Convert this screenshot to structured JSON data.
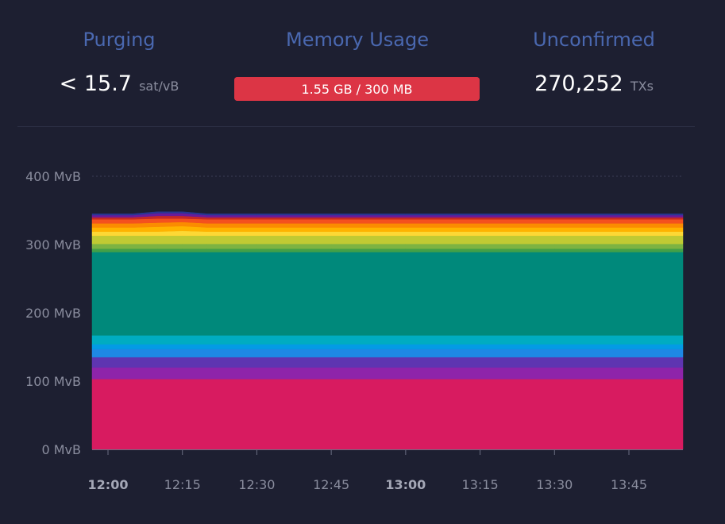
{
  "stats": {
    "purging": {
      "title": "Purging",
      "value": "< 15.7",
      "unit": "sat/vB"
    },
    "memory": {
      "title": "Memory Usage",
      "text": "1.55 GB / 300 MB",
      "fill_fraction": 1.0
    },
    "unconfirmed": {
      "title": "Unconfirmed",
      "value": "270,252",
      "unit": "TXs"
    }
  },
  "colors": {
    "title": "#4a68b0",
    "memory_bar": "#dc3545",
    "background": "#1d1f31"
  },
  "chart_data": {
    "type": "area",
    "stacked": true,
    "title": "",
    "xlabel": "",
    "ylabel": "",
    "y_unit": "MvB",
    "ylim": [
      0,
      400
    ],
    "y_ticks": [
      {
        "value": 0,
        "label": "0 MvB"
      },
      {
        "value": 100,
        "label": "100 MvB"
      },
      {
        "value": 200,
        "label": "200 MvB"
      },
      {
        "value": 300,
        "label": "300 MvB"
      },
      {
        "value": 400,
        "label": "400 MvB"
      }
    ],
    "x_ticks": [
      {
        "value": "12:00",
        "label": "12:00",
        "bold": true
      },
      {
        "value": "12:15",
        "label": "12:15",
        "bold": false
      },
      {
        "value": "12:30",
        "label": "12:30",
        "bold": false
      },
      {
        "value": "12:45",
        "label": "12:45",
        "bold": false
      },
      {
        "value": "13:00",
        "label": "13:00",
        "bold": true
      },
      {
        "value": "13:15",
        "label": "13:15",
        "bold": false
      },
      {
        "value": "13:30",
        "label": "13:30",
        "bold": false
      },
      {
        "value": "13:45",
        "label": "13:45",
        "bold": false
      }
    ],
    "x": [
      "11:58",
      "12:05",
      "12:10",
      "12:15",
      "12:20",
      "12:30",
      "12:45",
      "13:00",
      "13:15",
      "13:30",
      "13:45",
      "13:55"
    ],
    "series": [
      {
        "color": "#d81b60",
        "values": [
          103,
          103,
          103,
          103,
          103,
          103,
          103,
          103,
          103,
          103,
          103,
          103
        ]
      },
      {
        "color": "#8e24aa",
        "values": [
          17,
          17,
          17,
          17,
          17,
          17,
          17,
          17,
          17,
          17,
          17,
          17
        ]
      },
      {
        "color": "#5e35b1",
        "values": [
          15,
          15,
          15,
          15,
          15,
          15,
          15,
          15,
          15,
          15,
          15,
          15
        ]
      },
      {
        "color": "#1e88e5",
        "values": [
          12,
          12,
          12,
          12,
          12,
          12,
          12,
          12,
          12,
          12,
          12,
          12
        ]
      },
      {
        "color": "#039be5",
        "values": [
          7,
          7,
          7,
          7,
          7,
          7,
          7,
          7,
          7,
          7,
          7,
          7
        ]
      },
      {
        "color": "#00acc1",
        "values": [
          13,
          13,
          13,
          13,
          13,
          13,
          13,
          13,
          13,
          13,
          13,
          13
        ]
      },
      {
        "color": "#00897b",
        "values": [
          122,
          122,
          122,
          122,
          122,
          122,
          122,
          122,
          122,
          122,
          122,
          122
        ]
      },
      {
        "color": "#43a047",
        "values": [
          5,
          5,
          5,
          5,
          5,
          5,
          5,
          5,
          5,
          5,
          5,
          5
        ]
      },
      {
        "color": "#7cb342",
        "values": [
          7,
          7,
          7,
          7,
          7,
          7,
          7,
          7,
          7,
          7,
          7,
          7
        ]
      },
      {
        "color": "#c0ca33",
        "values": [
          12,
          12,
          12,
          12,
          12,
          12,
          12,
          12,
          12,
          12,
          12,
          12
        ]
      },
      {
        "color": "#fdd835",
        "values": [
          6,
          6,
          6,
          7,
          6,
          6,
          6,
          6,
          6,
          6,
          6,
          6
        ]
      },
      {
        "color": "#ffb300",
        "values": [
          6,
          6,
          7,
          7,
          6,
          6,
          6,
          6,
          6,
          6,
          6,
          6
        ]
      },
      {
        "color": "#fb8c00",
        "values": [
          6,
          6,
          6,
          6,
          6,
          6,
          6,
          6,
          6,
          6,
          6,
          6
        ]
      },
      {
        "color": "#f4511e",
        "values": [
          6,
          6,
          6,
          5,
          6,
          6,
          6,
          6,
          6,
          6,
          6,
          6
        ]
      },
      {
        "color": "#c62828",
        "values": [
          3,
          3,
          4,
          4,
          3,
          3,
          3,
          3,
          3,
          3,
          3,
          3
        ]
      },
      {
        "color": "#6a1b9a",
        "values": [
          3,
          3,
          4,
          4,
          3,
          3,
          3,
          3,
          3,
          3,
          3,
          3
        ]
      },
      {
        "color": "#283593",
        "values": [
          2,
          2,
          2,
          2,
          2,
          2,
          2,
          2,
          2,
          2,
          2,
          2
        ]
      }
    ]
  }
}
